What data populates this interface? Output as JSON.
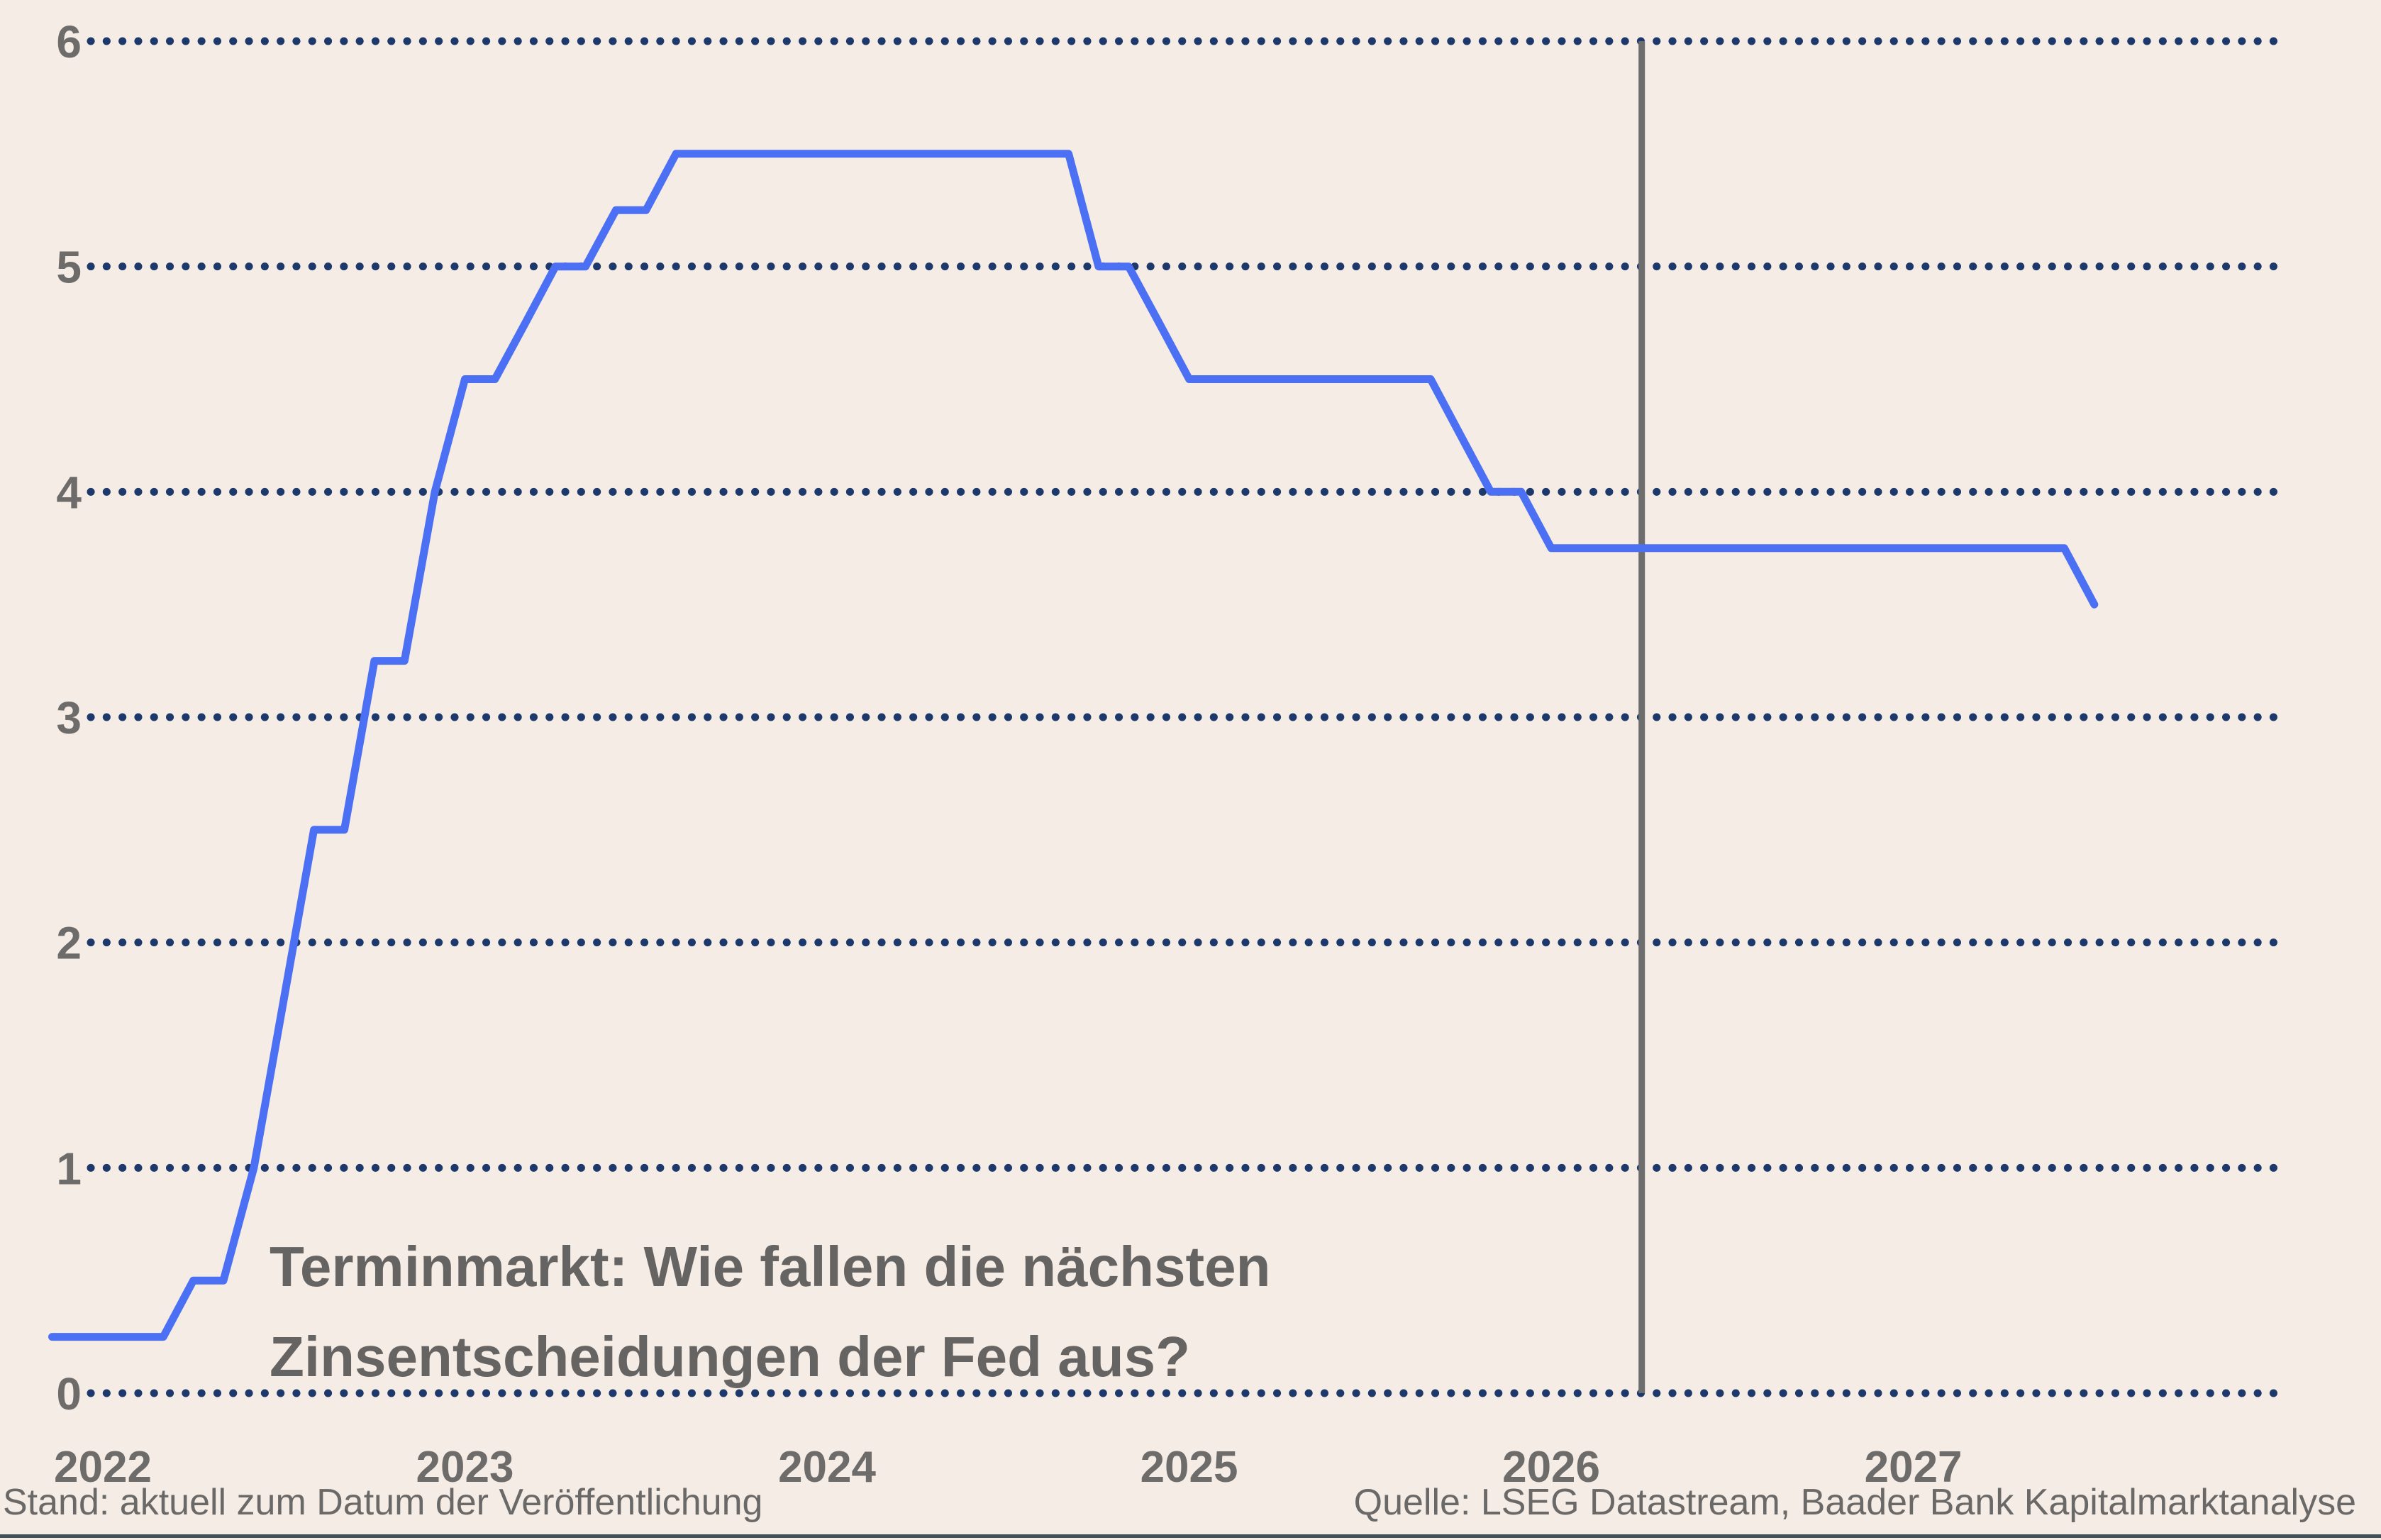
{
  "title": {
    "line1": "Terminmarkt: Wie fallen die nächsten",
    "line2": "Zinsentscheidungen der Fed aus?"
  },
  "footer": {
    "left": "Stand: aktuell zum Datum der Veröffentlichung",
    "right": "Quelle: LSEG Datastream, Baader Bank Kapitalmarktanalyse"
  },
  "chart_data": {
    "type": "line",
    "title": "Terminmarkt: Wie fallen die nächsten Zinsentscheidungen der Fed aus?",
    "xlabel": "",
    "ylabel": "",
    "xlim": [
      2021.9667,
      2028.0233
    ],
    "ylim": [
      0,
      6
    ],
    "x_ticks": [
      2022,
      2023,
      2024,
      2025,
      2026,
      2027
    ],
    "y_ticks": [
      0,
      1,
      2,
      3,
      4,
      5,
      6
    ],
    "grid": "dotted horizontal gridlines at each y tick",
    "legend": "none",
    "vertical_marker_x": 2026.25,
    "series": [
      {
        "points": [
          [
            2021.86,
            0.25
          ],
          [
            2022.167,
            0.25
          ],
          [
            2022.25,
            0.5
          ],
          [
            2022.333,
            0.5
          ],
          [
            2022.417,
            1.0
          ],
          [
            2022.5,
            1.75
          ],
          [
            2022.583,
            2.5
          ],
          [
            2022.667,
            2.5
          ],
          [
            2022.75,
            3.25
          ],
          [
            2022.833,
            3.25
          ],
          [
            2022.917,
            4.0
          ],
          [
            2023.0,
            4.5
          ],
          [
            2023.083,
            4.5
          ],
          [
            2023.167,
            4.75
          ],
          [
            2023.25,
            5.0
          ],
          [
            2023.333,
            5.0
          ],
          [
            2023.417,
            5.25
          ],
          [
            2023.5,
            5.25
          ],
          [
            2023.583,
            5.5
          ],
          [
            2024.667,
            5.5
          ],
          [
            2024.75,
            5.0
          ],
          [
            2024.833,
            5.0
          ],
          [
            2024.917,
            4.75
          ],
          [
            2025.0,
            4.5
          ],
          [
            2025.667,
            4.5
          ],
          [
            2025.75,
            4.25
          ],
          [
            2025.833,
            4.0
          ],
          [
            2025.917,
            4.0
          ],
          [
            2026.0,
            3.75
          ],
          [
            2027.417,
            3.75
          ],
          [
            2027.5,
            3.5
          ]
        ]
      }
    ],
    "colors": {
      "background": "#f4ece5",
      "line": "#4c70f4",
      "grid_dots": "#1d386b",
      "marker_line": "#6d6d6d",
      "axis_text": "#6e6c6a",
      "title_text": "#666462",
      "footer_text": "#6b6968",
      "bottom_rule": "#415059"
    }
  }
}
